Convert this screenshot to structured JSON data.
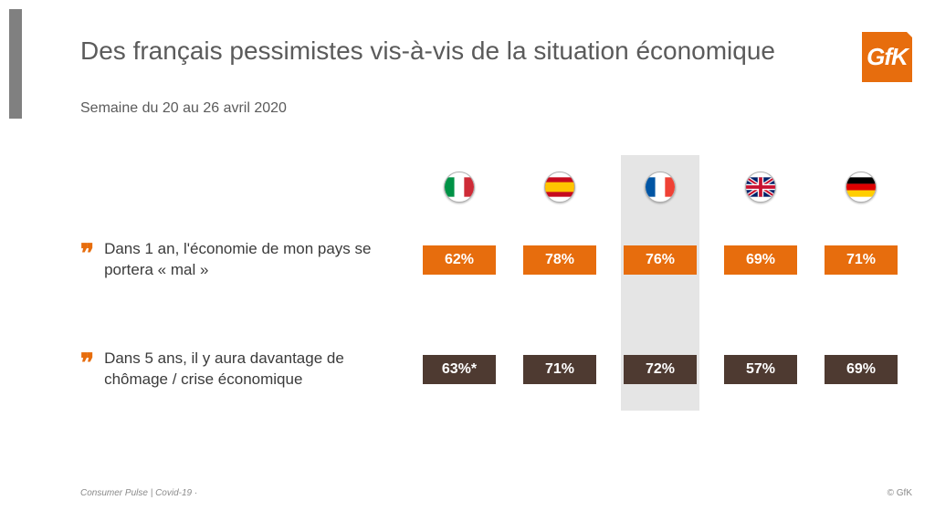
{
  "title": "Des français pessimistes vis-à-vis de la situation économique",
  "subtitle": "Semaine du 20 au 26 avril 2020",
  "brand": {
    "text": "GfK",
    "bg": "#e76d0d",
    "fg": "#ffffff"
  },
  "countries": [
    {
      "id": "italy",
      "name": "Italy"
    },
    {
      "id": "spain",
      "name": "Spain"
    },
    {
      "id": "france",
      "name": "France"
    },
    {
      "id": "uk",
      "name": "United Kingdom"
    },
    {
      "id": "germany",
      "name": "Germany"
    }
  ],
  "highlight_country_index": 2,
  "rows": [
    {
      "label": "Dans 1 an, l'économie de mon pays se portera « mal »",
      "color": "#e76d0d",
      "values": [
        "62%",
        "78%",
        "76%",
        "69%",
        "71%"
      ]
    },
    {
      "label": "Dans 5 ans, il y aura davantage de chômage / crise économique",
      "color": "#4e3a31",
      "values": [
        "63%*",
        "71%",
        "72%",
        "57%",
        "69%"
      ]
    }
  ],
  "footer_left": "Consumer Pulse | Covid-19  ·",
  "footer_right": "© GfK",
  "style": {
    "title_color": "#5b5b5b",
    "title_fontsize": 28,
    "subtitle_fontsize": 16,
    "value_box_text_color": "#ffffff",
    "highlight_bg": "#d0d0d0",
    "quote_color": "#e76d0d",
    "background": "#ffffff"
  }
}
